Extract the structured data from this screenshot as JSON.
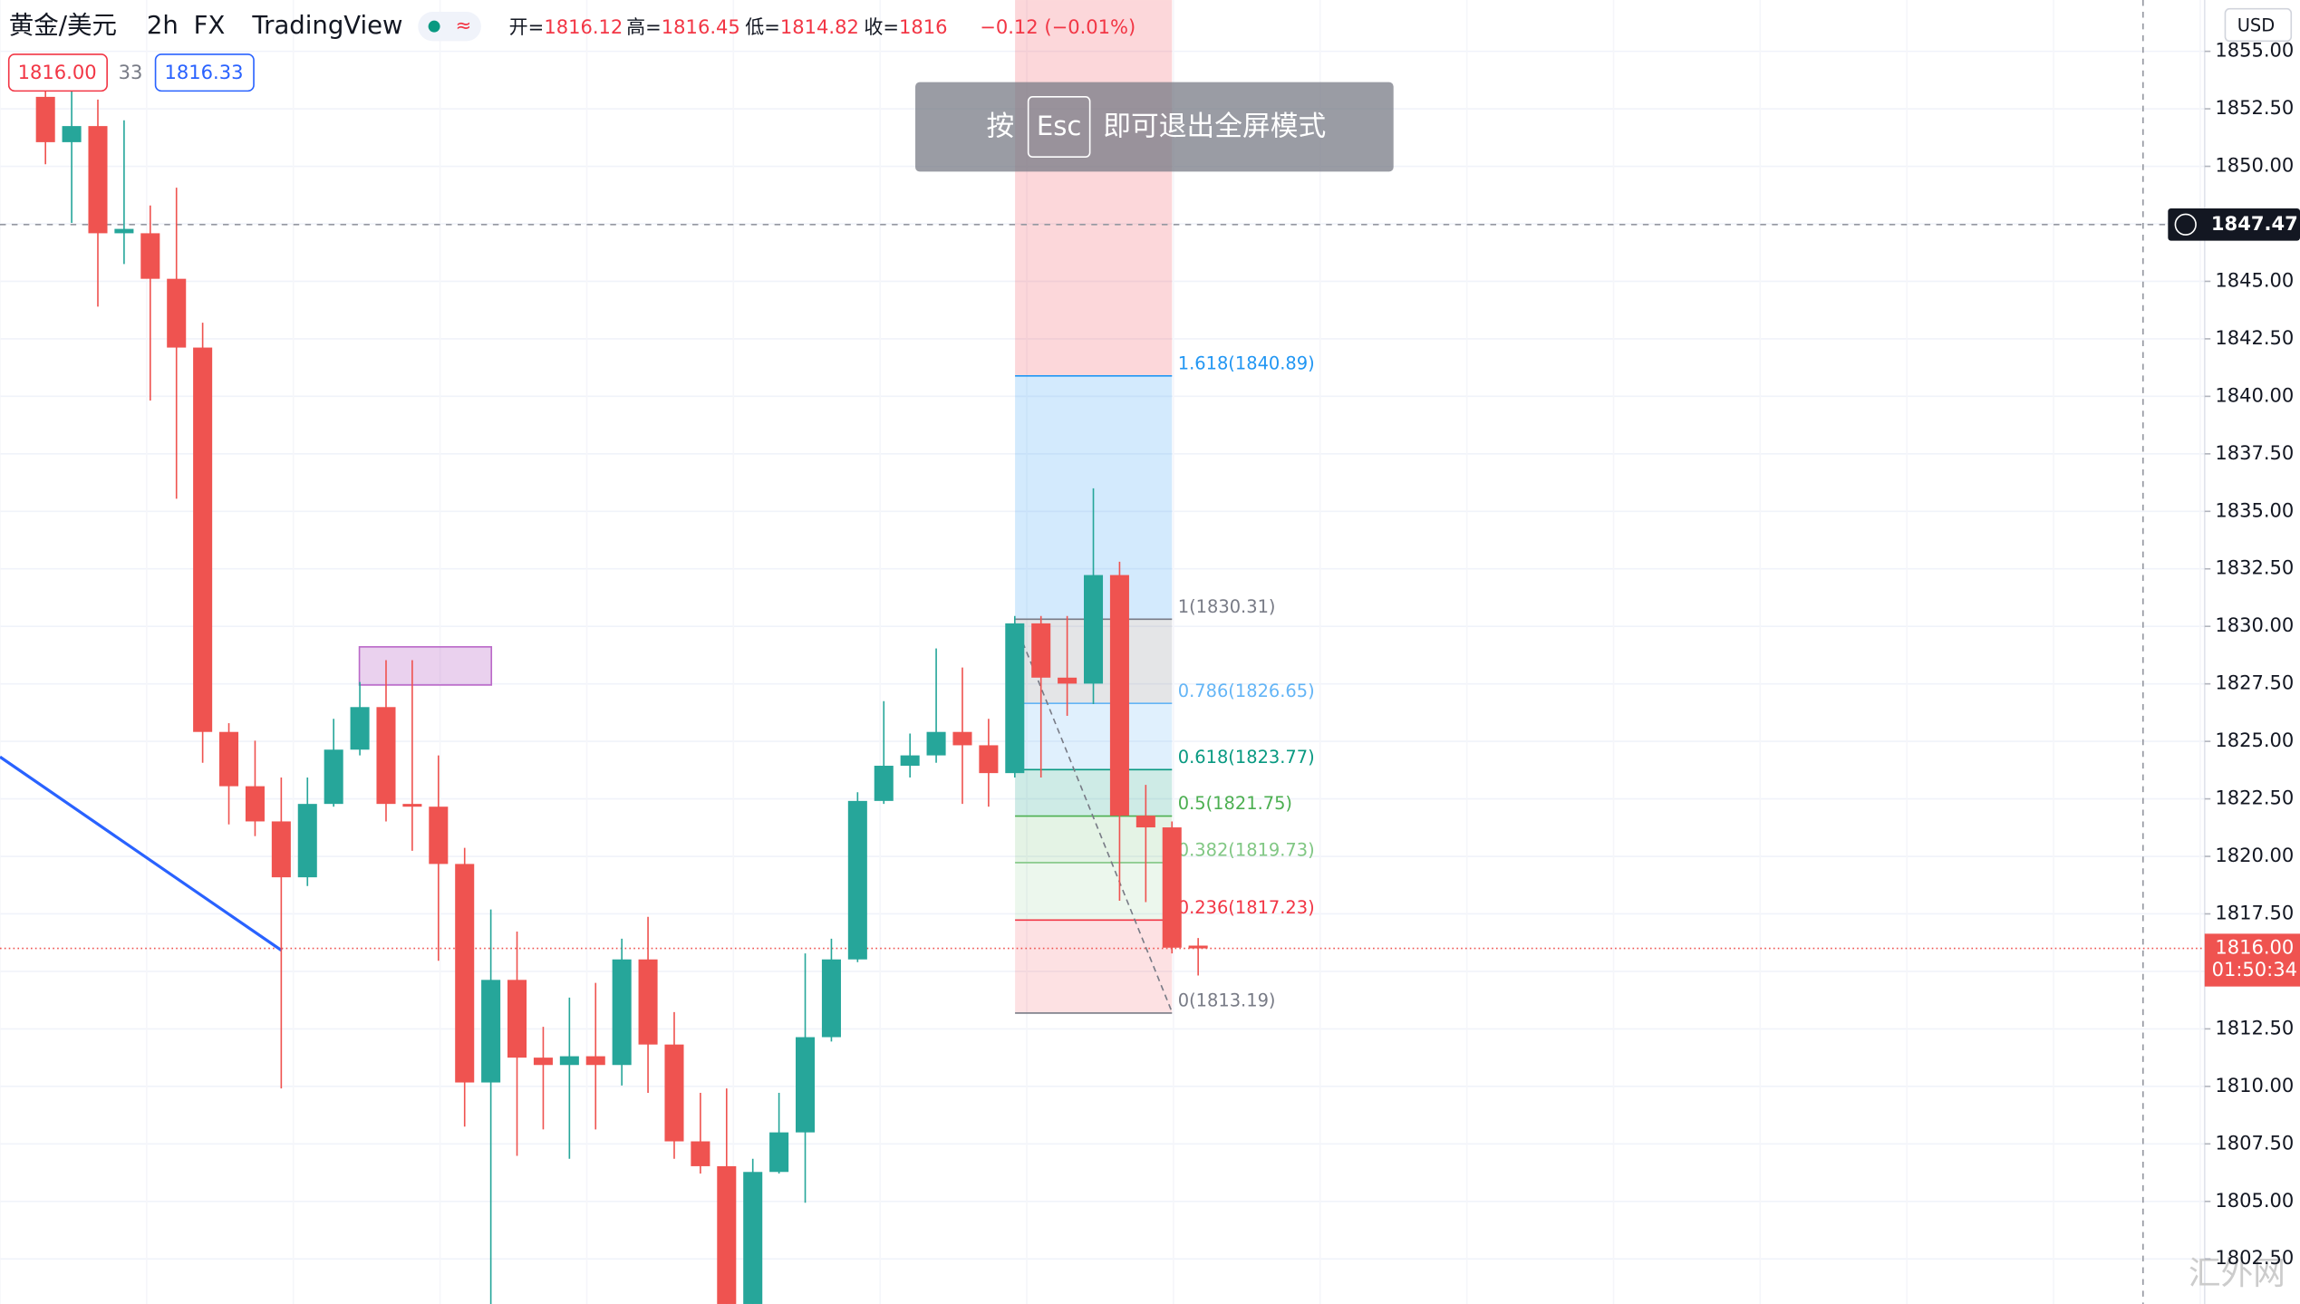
{
  "chart_data": {
    "type": "candlestick",
    "symbol": "黄金/美元",
    "interval": "2h",
    "exchange": "FX",
    "brand": "TradingView",
    "ohlc": [
      {
        "label": "开=",
        "value": 1816.12
      },
      {
        "label": "高=",
        "value": 1816.45
      },
      {
        "label": "低=",
        "value": 1814.82
      },
      {
        "label": "收=",
        "value": 1816.0
      }
    ],
    "change": "−0.12 (−0.01%)",
    "sell_price": "1816.00",
    "spread": "33",
    "buy_price": "1816.33",
    "notice": {
      "before": "按",
      "key": "Esc",
      "after": "即可退出全屏模式"
    },
    "currency": "USD",
    "up_color": "#26a69a",
    "down_color": "#ef5350",
    "open": [
      1853.02,
      1851.05,
      1851.75,
      1847.09,
      1847.09,
      1845.11,
      1842.12,
      1825.41,
      1823.05,
      1821.52,
      1819.09,
      1822.28,
      1824.64,
      1826.49,
      1822.28,
      1822.16,
      1819.67,
      1810.17,
      1814.63,
      1811.25,
      1810.93,
      1811.31,
      1810.93,
      1815.52,
      1811.82,
      1807.61,
      1806.53,
      1800.54,
      1806.28,
      1808.0,
      1812.14,
      1815.52,
      1822.41,
      1823.94,
      1824.39,
      1825.41,
      1824.83,
      1823.62,
      1830.13,
      1827.77,
      1827.51,
      1832.23,
      1821.77,
      1821.26,
      1816.12
    ],
    "high": [
      1853.41,
      1853.41,
      1852.9,
      1852.0,
      1848.3,
      1849.07,
      1843.2,
      1825.79,
      1825.03,
      1823.43,
      1823.43,
      1825.98,
      1827.58,
      1828.53,
      1828.53,
      1824.39,
      1820.37,
      1817.69,
      1816.73,
      1812.59,
      1813.86,
      1814.5,
      1816.42,
      1817.37,
      1813.23,
      1809.72,
      1809.91,
      1806.85,
      1809.72,
      1815.78,
      1816.42,
      1822.79,
      1826.75,
      1825.34,
      1829.04,
      1828.21,
      1825.98,
      1830.45,
      1830.45,
      1830.45,
      1836.0,
      1832.81,
      1823.11,
      1821.52,
      1816.45
    ],
    "low": [
      1850.09,
      1847.54,
      1843.9,
      1845.75,
      1839.82,
      1835.55,
      1824.07,
      1821.39,
      1820.88,
      1809.91,
      1818.71,
      1822.16,
      1824.39,
      1821.52,
      1820.24,
      1815.46,
      1808.25,
      1800.54,
      1806.98,
      1808.13,
      1806.85,
      1808.13,
      1810.04,
      1809.72,
      1806.85,
      1806.21,
      1800.54,
      1800.54,
      1806.21,
      1804.94,
      1811.95,
      1815.4,
      1822.28,
      1823.43,
      1824.07,
      1822.28,
      1822.16,
      1823.43,
      1823.43,
      1826.11,
      1826.62,
      1818.07,
      1818.01,
      1815.78,
      1814.82
    ],
    "close": [
      1851.05,
      1851.75,
      1847.09,
      1847.28,
      1845.11,
      1842.12,
      1825.41,
      1823.05,
      1821.52,
      1819.09,
      1822.28,
      1824.64,
      1826.49,
      1822.28,
      1822.16,
      1819.67,
      1810.17,
      1814.63,
      1811.25,
      1810.93,
      1811.31,
      1810.93,
      1815.52,
      1811.82,
      1807.61,
      1806.53,
      1800.54,
      1806.28,
      1808.0,
      1812.14,
      1815.52,
      1822.41,
      1823.94,
      1824.39,
      1825.41,
      1824.83,
      1823.62,
      1830.13,
      1827.77,
      1827.51,
      1832.23,
      1821.77,
      1821.26,
      1816.03,
      1816.0
    ],
    "fib": {
      "levels": [
        {
          "label": "1.618(1840.89)",
          "value": 1840.89,
          "color": "#2196f3"
        },
        {
          "label": "1(1830.31)",
          "value": 1830.31,
          "color": "#787b86"
        },
        {
          "label": "0.786(1826.65)",
          "value": 1826.65,
          "color": "#64b5f6"
        },
        {
          "label": "0.618(1823.77)",
          "value": 1823.77,
          "color": "#089981"
        },
        {
          "label": "0.5(1821.75)",
          "value": 1821.75,
          "color": "#4caf50"
        },
        {
          "label": "0.382(1819.73)",
          "value": 1819.73,
          "color": "#81c784"
        },
        {
          "label": "0.236(1817.23)",
          "value": 1817.23,
          "color": "#f23645"
        },
        {
          "label": "0(1813.19)",
          "value": 1813.19,
          "color": "#787b86"
        }
      ],
      "zone_colors": [
        "rgba(33,150,243,0.2)",
        "rgba(120,123,134,0.2)",
        "rgba(100,181,246,0.2)",
        "rgba(8,153,129,0.2)",
        "rgba(76,175,80,0.15)",
        "rgba(129,199,132,0.15)",
        "rgba(242,54,69,0.15)"
      ],
      "top_color": "rgba(242,54,69,0.2)"
    },
    "ylim": [
      1800.54,
      1857.23
    ],
    "yticks": [
      {
        "value": 1855,
        "label": "1855.00"
      },
      {
        "value": 1852.5,
        "label": "1852.50"
      },
      {
        "value": 1850,
        "label": "1850.00"
      },
      {
        "value": 1847.5,
        "label": "1847.50"
      },
      {
        "value": 1845,
        "label": "1845.00"
      },
      {
        "value": 1842.5,
        "label": "1842.50"
      },
      {
        "value": 1840,
        "label": "1840.00"
      },
      {
        "value": 1837.5,
        "label": "1837.50"
      },
      {
        "value": 1835,
        "label": "1835.00"
      },
      {
        "value": 1832.5,
        "label": "1832.50"
      },
      {
        "value": 1830,
        "label": "1830.00"
      },
      {
        "value": 1827.5,
        "label": "1827.50"
      },
      {
        "value": 1825,
        "label": "1825.00"
      },
      {
        "value": 1822.5,
        "label": "1822.50"
      },
      {
        "value": 1820,
        "label": "1820.00"
      },
      {
        "value": 1817.5,
        "label": "1817.50"
      },
      {
        "value": 1815,
        "label": "1815.00"
      },
      {
        "value": 1812.5,
        "label": "1812.50"
      },
      {
        "value": 1810,
        "label": "1810.00"
      },
      {
        "value": 1807.5,
        "label": "1807.50"
      },
      {
        "value": 1805,
        "label": "1805.00"
      },
      {
        "value": 1802.5,
        "label": "1802.50"
      }
    ],
    "grid": true,
    "last_price": {
      "value": 1816.0,
      "label": "1816.00",
      "countdown": "01:50:34"
    },
    "crosshair": {
      "value": 1847.47,
      "label": "1847.47"
    },
    "watermark": "汇外网"
  }
}
